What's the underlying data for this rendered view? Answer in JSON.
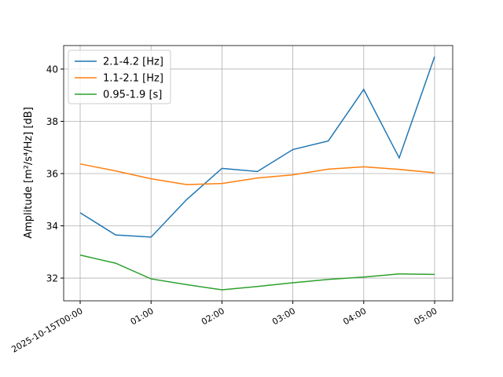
{
  "chart_data": {
    "type": "line",
    "y_label": "Amplitude [m²/s⁴/Hz] [dB]",
    "x": [
      0,
      0.5,
      1,
      1.5,
      2,
      2.5,
      3,
      3.5,
      4,
      4.5,
      5
    ],
    "series": [
      {
        "name": "2.1-4.2 [Hz]",
        "color": "#1f77b4",
        "values": [
          34.5,
          33.65,
          33.57,
          35.0,
          36.2,
          36.08,
          36.92,
          37.25,
          39.22,
          36.6,
          40.48
        ]
      },
      {
        "name": "1.1-2.1 [Hz]",
        "color": "#ff7f0e",
        "values": [
          36.37,
          36.1,
          35.8,
          35.58,
          35.62,
          35.83,
          35.95,
          36.17,
          36.26,
          36.16,
          36.03
        ]
      },
      {
        "name": "0.95-1.9 [s]",
        "color": "#2ca02c",
        "values": [
          32.88,
          32.57,
          31.97,
          31.75,
          31.55,
          31.68,
          31.82,
          31.95,
          32.04,
          32.16,
          32.14
        ]
      }
    ],
    "xlim": [
      -0.233,
      5.255
    ],
    "xticks": [
      {
        "value": 0,
        "label": "2025-10-15T00:00"
      },
      {
        "value": 1,
        "label": "01:00"
      },
      {
        "value": 2,
        "label": "02:00"
      },
      {
        "value": 3,
        "label": "03:00"
      },
      {
        "value": 4,
        "label": "04:00"
      },
      {
        "value": 5,
        "label": "05:00"
      }
    ],
    "ylim": [
      31.13,
      40.9
    ],
    "yticks": [
      32,
      34,
      36,
      38,
      40
    ],
    "grid": true,
    "legend": "upper-left"
  }
}
